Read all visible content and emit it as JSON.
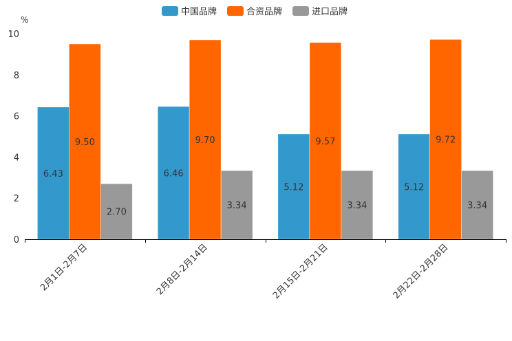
{
  "chart_data": {
    "type": "bar",
    "unit": "%",
    "categories": [
      "2月1日-2月7日",
      "2月8日-2月14日",
      "2月15日-2月21日",
      "2月22日-2月28日"
    ],
    "series": [
      {
        "name": "中国品牌",
        "color": "#3399cc",
        "values": [
          6.43,
          6.46,
          5.12,
          5.12
        ],
        "labels": [
          "6.43",
          "6.46",
          "5.12",
          "5.12"
        ]
      },
      {
        "name": "合资品牌",
        "color": "#ff6600",
        "values": [
          9.5,
          9.7,
          9.57,
          9.72
        ],
        "labels": [
          "9.50",
          "9.70",
          "9.57",
          "9.72"
        ]
      },
      {
        "name": "进口品牌",
        "color": "#999999",
        "values": [
          2.7,
          3.34,
          3.34,
          3.34
        ],
        "labels": [
          "2.70",
          "3.34",
          "3.34",
          "3.34"
        ]
      }
    ],
    "yticks": [
      "0",
      "2",
      "4",
      "6",
      "8",
      "10"
    ],
    "ylim": [
      0,
      10
    ],
    "legend_position": "top-center"
  }
}
